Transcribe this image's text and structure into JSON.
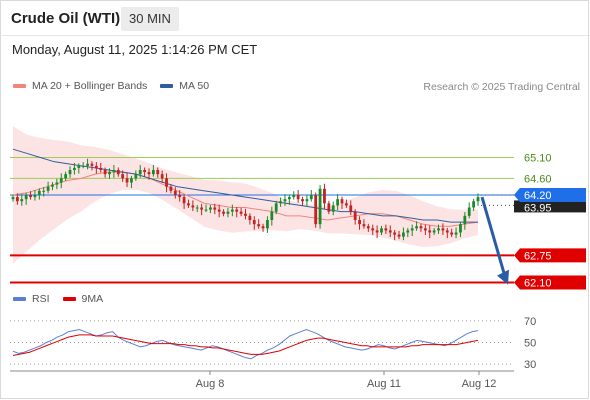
{
  "header": {
    "title": "Crude Oil (WTI)",
    "timeframe": "30 MIN",
    "datetime": "Monday, August 11, 2025 1:14:26 PM CET"
  },
  "legend_main": [
    {
      "label": "MA 20 + Bollinger Bands",
      "color": "#f4837d"
    },
    {
      "label": "MA 50",
      "color": "#2f5d9e"
    }
  ],
  "legend_rsi": [
    {
      "label": "RSI",
      "color": "#5b7fd6"
    },
    {
      "label": "9MA",
      "color": "#e00000"
    }
  ],
  "copyright": "Research © 2025 Trading Central",
  "colors": {
    "bull": "#1a8a2a",
    "bear": "#c22222",
    "band_fill": "#fde4e4",
    "ma20": "#f4837d",
    "ma50": "#2f5d9e",
    "current_price_bg": "#1e6fe8",
    "support_red": "#e00000",
    "resistance_green": "#9acd5a",
    "arrow": "#2a5ca6"
  },
  "chart_data": [
    {
      "type": "candlestick",
      "title": "",
      "ylim": [
        61.8,
        66.6
      ],
      "x_labels": [
        "Aug 8",
        "Aug 11",
        "Aug 12"
      ],
      "horizontal_levels": [
        {
          "value": 65.1,
          "label": "65.10",
          "kind": "resistance"
        },
        {
          "value": 64.6,
          "label": "64.60",
          "kind": "resistance"
        },
        {
          "value": 64.2,
          "label": "64.20",
          "kind": "current"
        },
        {
          "value": 62.75,
          "label": "62.75",
          "kind": "support"
        },
        {
          "value": 62.1,
          "label": "62.10",
          "kind": "support"
        }
      ],
      "secondary_label": "63.95",
      "close_series": [
        64.15,
        64.05,
        64.1,
        64.2,
        64.15,
        64.2,
        64.3,
        64.3,
        64.4,
        64.45,
        64.5,
        64.6,
        64.7,
        64.8,
        64.85,
        64.9,
        64.9,
        64.95,
        64.9,
        64.85,
        64.8,
        64.7,
        64.75,
        64.8,
        64.7,
        64.6,
        64.5,
        64.6,
        64.7,
        64.8,
        64.75,
        64.7,
        64.8,
        64.7,
        64.6,
        64.4,
        64.3,
        64.2,
        64.15,
        64.0,
        63.95,
        63.9,
        63.9,
        63.85,
        63.85,
        63.9,
        63.85,
        63.8,
        63.75,
        63.8,
        63.85,
        63.8,
        63.75,
        63.7,
        63.6,
        63.5,
        63.45,
        63.4,
        63.6,
        63.8,
        64.0,
        64.05,
        64.1,
        64.15,
        64.2,
        64.1,
        64.05,
        64.1,
        64.2,
        63.5,
        64.35,
        64.0,
        63.8,
        63.95,
        64.1,
        64.0,
        63.95,
        63.8,
        63.6,
        63.5,
        63.45,
        63.4,
        63.35,
        63.3,
        63.4,
        63.35,
        63.3,
        63.25,
        63.2,
        63.3,
        63.35,
        63.4,
        63.45,
        63.4,
        63.35,
        63.3,
        63.35,
        63.4,
        63.35,
        63.3,
        63.25,
        63.3,
        63.5,
        63.7,
        63.9,
        64.05,
        64.15
      ],
      "ma20": [
        64.2,
        64.25,
        64.35,
        64.45,
        64.55,
        64.6,
        64.7,
        64.75,
        64.75,
        64.7,
        64.6,
        64.45,
        64.3,
        64.15,
        64.0,
        63.95,
        63.9,
        63.9,
        63.85,
        63.8,
        63.7,
        63.7,
        63.65,
        63.6,
        63.65,
        63.7,
        63.75,
        63.75,
        63.7,
        63.6,
        63.5,
        63.45,
        63.45,
        63.5,
        63.55
      ],
      "ma50": [
        65.3,
        65.2,
        65.1,
        65.0,
        64.95,
        64.9,
        64.85,
        64.8,
        64.75,
        64.7,
        64.6,
        64.5,
        64.4,
        64.35,
        64.3,
        64.25,
        64.2,
        64.15,
        64.1,
        64.05,
        64.0,
        63.95,
        63.9,
        63.85,
        63.8,
        63.8,
        63.75,
        63.7,
        63.7,
        63.65,
        63.6,
        63.6,
        63.55,
        63.55,
        63.55
      ]
    },
    {
      "type": "line",
      "title": "",
      "ylim": [
        20,
        80
      ],
      "yticks": [
        70,
        50,
        30
      ],
      "series": [
        {
          "name": "RSI",
          "values": [
            42,
            40,
            41,
            43,
            45,
            47,
            50,
            52,
            55,
            57,
            60,
            61,
            62,
            60,
            58,
            56,
            57,
            59,
            60,
            55,
            52,
            50,
            48,
            46,
            47,
            49,
            51,
            52,
            50,
            48,
            47,
            46,
            45,
            44,
            43,
            45,
            47,
            46,
            44,
            42,
            40,
            38,
            36,
            35,
            38,
            40,
            43,
            45,
            48,
            52,
            56,
            58,
            60,
            62,
            60,
            58,
            55,
            52,
            50,
            48,
            46,
            45,
            44,
            43,
            44,
            46,
            48,
            47,
            45,
            44,
            46,
            48,
            50,
            52,
            51,
            50,
            49,
            48,
            47,
            49,
            52,
            55,
            58,
            60,
            61
          ]
        },
        {
          "name": "9MA",
          "values": [
            38,
            39,
            40,
            41,
            43,
            45,
            47,
            49,
            51,
            53,
            55,
            56,
            57,
            57,
            57,
            56,
            56,
            56,
            56,
            55,
            54,
            53,
            52,
            51,
            50,
            49,
            49,
            49,
            49,
            49,
            48,
            48,
            47,
            47,
            46,
            46,
            45,
            45,
            44,
            43,
            42,
            41,
            40,
            39,
            39,
            39,
            40,
            41,
            42,
            44,
            46,
            48,
            50,
            52,
            53,
            54,
            54,
            53,
            52,
            51,
            50,
            49,
            48,
            47,
            47,
            46,
            46,
            46,
            46,
            46,
            46,
            46,
            47,
            47,
            48,
            48,
            48,
            48,
            48,
            48,
            48,
            49,
            50,
            51,
            52
          ]
        }
      ]
    }
  ]
}
